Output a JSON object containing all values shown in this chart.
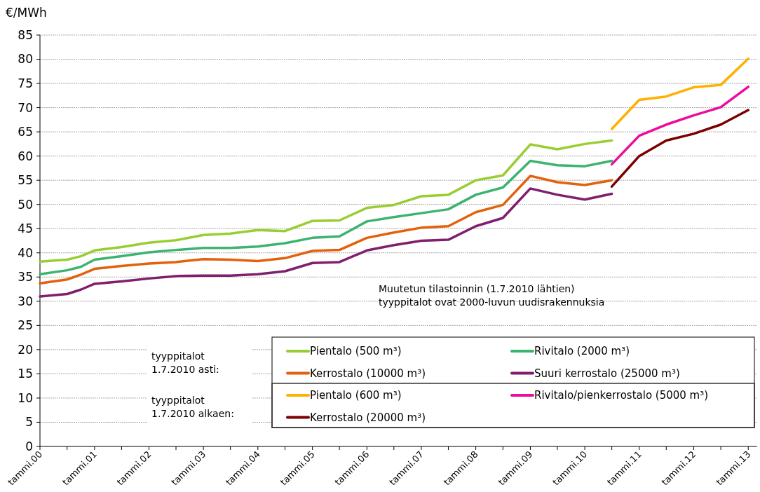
{
  "chart_data": {
    "type": "line",
    "ylabel": "€/MWh",
    "ylim": [
      0,
      85
    ],
    "yticks": [
      0,
      5,
      10,
      15,
      20,
      25,
      30,
      35,
      40,
      45,
      50,
      55,
      60,
      65,
      70,
      75,
      80,
      85
    ],
    "xlim": [
      "2000-01",
      "2013-03"
    ],
    "xticks": [
      {
        "value": "2000-01",
        "label": "tammi.00"
      },
      {
        "value": "2000-07",
        "label": null
      },
      {
        "value": "2001-01",
        "label": "tammi.01"
      },
      {
        "value": "2001-07",
        "label": null
      },
      {
        "value": "2002-01",
        "label": "tammi.02"
      },
      {
        "value": "2002-07",
        "label": null
      },
      {
        "value": "2003-01",
        "label": "tammi.03"
      },
      {
        "value": "2003-07",
        "label": null
      },
      {
        "value": "2004-01",
        "label": "tammi.04"
      },
      {
        "value": "2004-07",
        "label": null
      },
      {
        "value": "2005-01",
        "label": "tammi.05"
      },
      {
        "value": "2005-07",
        "label": null
      },
      {
        "value": "2006-01",
        "label": "tammi.06"
      },
      {
        "value": "2006-07",
        "label": null
      },
      {
        "value": "2007-01",
        "label": "tammi.07"
      },
      {
        "value": "2007-07",
        "label": null
      },
      {
        "value": "2008-01",
        "label": "tammi.08"
      },
      {
        "value": "2008-07",
        "label": null
      },
      {
        "value": "2009-01",
        "label": "tammi.09"
      },
      {
        "value": "2009-07",
        "label": null
      },
      {
        "value": "2010-01",
        "label": "tammi.10"
      },
      {
        "value": "2010-07",
        "label": null
      },
      {
        "value": "2011-01",
        "label": "tammi.11"
      },
      {
        "value": "2011-07",
        "label": null
      },
      {
        "value": "2012-01",
        "label": "tammi.12"
      },
      {
        "value": "2012-07",
        "label": null
      },
      {
        "value": "2013-01",
        "label": "tammi.13"
      }
    ],
    "grid": "y",
    "legend": "bottom right",
    "annotations": [
      "tyyppitalot\n1.7.2010 asti:",
      "tyyppitalot\n1.7.2010 alkaen:",
      "Muutetun tilastoinnin (1.7.2010 lähtien)\ntyyppitalot ovat 2000-luvun uudisrakennuksia"
    ],
    "x": [
      "2000-01",
      "2000-07",
      "2000-10",
      "2001-01",
      "2001-07",
      "2002-01",
      "2002-07",
      "2003-01",
      "2003-07",
      "2004-01",
      "2004-07",
      "2005-01",
      "2005-07",
      "2006-01",
      "2006-07",
      "2007-01",
      "2007-07",
      "2008-01",
      "2008-07",
      "2009-01",
      "2009-07",
      "2010-01",
      "2010-07"
    ],
    "series": [
      {
        "name": "Pientalo (500 m³)",
        "color": "#9acd32",
        "values": [
          38.2,
          38.6,
          39.3,
          40.5,
          41.2,
          42.1,
          42.6,
          43.7,
          44.0,
          44.7,
          44.5,
          46.6,
          46.7,
          49.3,
          49.9,
          51.7,
          52.0,
          55.0,
          56.0,
          62.4,
          61.4,
          62.5,
          63.2
        ]
      },
      {
        "name": "Rivitalo  (2000 m³)",
        "color": "#3cb371",
        "values": [
          35.6,
          36.4,
          37.1,
          38.6,
          39.3,
          40.1,
          40.6,
          41.0,
          41.0,
          41.3,
          42.0,
          43.1,
          43.4,
          46.5,
          47.4,
          48.2,
          49.0,
          52.0,
          53.5,
          59.0,
          58.1,
          57.9,
          59.0
        ]
      },
      {
        "name": "Kerrostalo (10000 m³)",
        "color": "#e2620c",
        "values": [
          33.7,
          34.5,
          35.5,
          36.7,
          37.3,
          37.8,
          38.1,
          38.7,
          38.6,
          38.3,
          38.9,
          40.4,
          40.6,
          43.1,
          44.2,
          45.2,
          45.5,
          48.4,
          49.9,
          55.9,
          54.6,
          54.0,
          55.0
        ]
      },
      {
        "name": "Suuri kerrostalo  (25000 m³)",
        "color": "#7f1f6e",
        "values": [
          31.0,
          31.5,
          32.4,
          33.6,
          34.1,
          34.7,
          35.2,
          35.3,
          35.3,
          35.6,
          36.2,
          37.9,
          38.1,
          40.5,
          41.6,
          42.5,
          42.7,
          45.5,
          47.2,
          53.3,
          52.0,
          51.0,
          52.2
        ]
      },
      {
        "name": "Pientalo (600 m³)",
        "color": "#ffb000",
        "x": [
          "2010-07",
          "2011-01",
          "2011-07",
          "2012-01",
          "2012-07",
          "2013-01"
        ],
        "values": [
          65.6,
          71.6,
          72.3,
          74.2,
          74.7,
          80.1
        ]
      },
      {
        "name": "Rivitalo/pienkerrostalo (5000 m³)",
        "color": "#ec0b9c",
        "x": [
          "2010-07",
          "2011-01",
          "2011-07",
          "2012-01",
          "2012-07",
          "2013-01"
        ],
        "values": [
          58.3,
          64.2,
          66.5,
          68.4,
          70.1,
          74.3
        ]
      },
      {
        "name": "Kerrostalo (20000 m³)",
        "color": "#7b0000",
        "x": [
          "2010-07",
          "2011-01",
          "2011-07",
          "2012-01",
          "2012-07",
          "2013-01"
        ],
        "values": [
          53.7,
          60.0,
          63.2,
          64.6,
          66.5,
          69.5
        ]
      }
    ]
  }
}
